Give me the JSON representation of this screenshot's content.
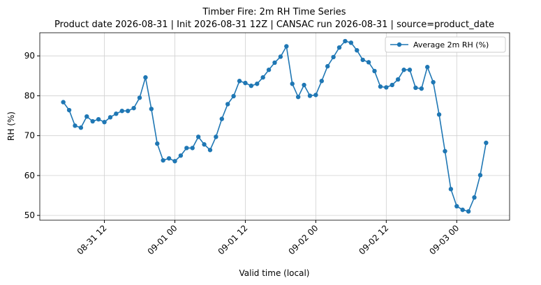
{
  "chart_data": {
    "type": "line",
    "title": "Timber Fire: 2m RH Time Series",
    "subtitle": "Product date 2026-08-31 | Init 2026-08-31 12Z | CANSAC run 2026-08-31 | source=product_date",
    "x_label": "Valid time (local)",
    "y_label": "RH (%)",
    "x": [
      "08-31 05",
      "08-31 06",
      "08-31 07",
      "08-31 08",
      "08-31 09",
      "08-31 10",
      "08-31 11",
      "08-31 12",
      "08-31 13",
      "08-31 14",
      "08-31 15",
      "08-31 16",
      "08-31 17",
      "08-31 18",
      "08-31 19",
      "08-31 20",
      "08-31 21",
      "08-31 22",
      "08-31 23",
      "09-01 00",
      "09-01 01",
      "09-01 02",
      "09-01 03",
      "09-01 04",
      "09-01 05",
      "09-01 06",
      "09-01 07",
      "09-01 08",
      "09-01 09",
      "09-01 10",
      "09-01 11",
      "09-01 12",
      "09-01 13",
      "09-01 14",
      "09-01 15",
      "09-01 16",
      "09-01 17",
      "09-01 18",
      "09-01 19",
      "09-01 20",
      "09-01 21",
      "09-01 22",
      "09-01 23",
      "09-02 00",
      "09-02 01",
      "09-02 02",
      "09-02 03",
      "09-02 04",
      "09-02 05",
      "09-02 06",
      "09-02 07",
      "09-02 08",
      "09-02 09",
      "09-02 10",
      "09-02 11",
      "09-02 12",
      "09-02 13",
      "09-02 14",
      "09-02 15",
      "09-02 16",
      "09-02 17",
      "09-02 18",
      "09-02 19",
      "09-02 20",
      "09-02 21",
      "09-02 22",
      "09-02 23",
      "09-03 00",
      "09-03 01",
      "09-03 02",
      "09-03 03",
      "09-03 04",
      "09-03 05"
    ],
    "series": [
      {
        "name": "Average 2m RH (%)",
        "color": "#1f77b4",
        "values": [
          78.4,
          76.4,
          72.5,
          72.0,
          74.8,
          73.6,
          74.1,
          73.4,
          74.6,
          75.5,
          76.2,
          76.2,
          76.9,
          79.5,
          84.6,
          76.7,
          68.0,
          63.8,
          64.3,
          63.6,
          65.0,
          66.9,
          66.9,
          69.7,
          67.8,
          66.4,
          69.7,
          74.2,
          77.9,
          79.9,
          83.7,
          83.2,
          82.5,
          83.0,
          84.6,
          86.5,
          88.3,
          89.8,
          92.4,
          83.0,
          79.7,
          82.7,
          80.0,
          80.2,
          83.7,
          87.4,
          89.7,
          92.1,
          93.7,
          93.3,
          91.4,
          89.0,
          88.4,
          86.2,
          82.3,
          82.1,
          82.7,
          84.1,
          86.5,
          86.5,
          82.0,
          81.8,
          87.2,
          83.4,
          75.3,
          66.1,
          56.6,
          52.3,
          51.4,
          51.0,
          54.5,
          60.1,
          68.2
        ]
      }
    ],
    "xlim": [
      "08-31 01",
      "09-03 09"
    ],
    "xticks": [
      "08-31 12",
      "09-01 00",
      "09-01 12",
      "09-02 00",
      "09-02 12",
      "09-03 00"
    ],
    "ylim": [
      48.8,
      95.8
    ],
    "yticks": [
      50,
      60,
      70,
      80,
      90
    ],
    "grid": true,
    "legend": "upper right"
  }
}
